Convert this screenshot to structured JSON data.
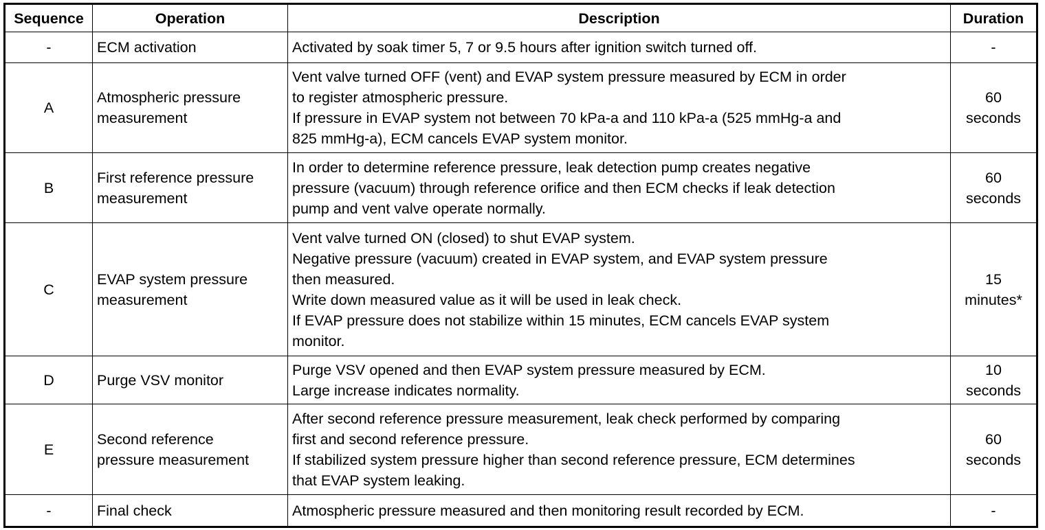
{
  "headers": {
    "sequence": "Sequence",
    "operation": "Operation",
    "description": "Description",
    "duration": "Duration"
  },
  "rows": [
    {
      "sequence": "-",
      "operation": [
        "ECM activation"
      ],
      "description": [
        "Activated by soak timer 5, 7 or 9.5 hours after ignition switch turned off."
      ],
      "duration": [
        "-"
      ]
    },
    {
      "sequence": "A",
      "operation": [
        "Atmospheric pressure",
        "measurement"
      ],
      "description": [
        "Vent valve turned OFF (vent) and EVAP system pressure measured by ECM in order",
        "to register atmospheric pressure.",
        "If pressure in EVAP system not between 70 kPa-a and 110 kPa-a (525 mmHg-a and",
        "825 mmHg-a), ECM cancels EVAP system monitor."
      ],
      "duration": [
        "60",
        "seconds"
      ]
    },
    {
      "sequence": "B",
      "operation": [
        "First reference pressure",
        "measurement"
      ],
      "description": [
        "In order to determine reference pressure, leak detection pump creates negative",
        "pressure (vacuum) through reference orifice and then ECM checks if leak detection",
        "pump and vent valve operate normally."
      ],
      "duration": [
        "60",
        "seconds"
      ]
    },
    {
      "sequence": "C",
      "operation": [
        "EVAP system pressure",
        "measurement"
      ],
      "description": [
        "Vent valve turned ON (closed) to shut EVAP system.",
        "Negative pressure (vacuum) created in EVAP system, and EVAP system pressure",
        "then measured.",
        "Write down measured value as it will be used in leak check.",
        "If EVAP pressure does not stabilize within 15 minutes, ECM cancels EVAP system",
        "monitor."
      ],
      "duration": [
        "15",
        "minutes*"
      ]
    },
    {
      "sequence": "D",
      "operation": [
        "Purge VSV monitor"
      ],
      "description": [
        "Purge VSV opened and then EVAP system pressure measured by ECM.",
        "Large increase indicates normality."
      ],
      "duration": [
        "10",
        "seconds"
      ]
    },
    {
      "sequence": "E",
      "operation": [
        "Second reference",
        "pressure measurement"
      ],
      "description": [
        "After second reference pressure measurement, leak check performed by comparing",
        "first and second reference pressure.",
        "If stabilized system pressure higher than second reference pressure, ECM determines",
        "that EVAP system leaking."
      ],
      "duration": [
        "60",
        "seconds"
      ]
    },
    {
      "sequence": "-",
      "operation": [
        "Final check"
      ],
      "description": [
        "Atmospheric pressure measured and then monitoring result recorded by ECM."
      ],
      "duration": [
        "-"
      ]
    }
  ]
}
